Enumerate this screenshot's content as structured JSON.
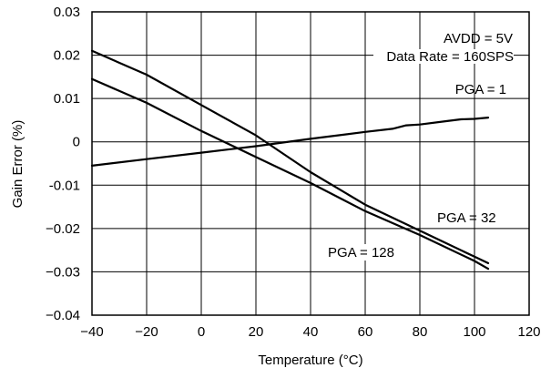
{
  "chart_data": {
    "type": "line",
    "title": "",
    "xlabel": "Temperature (°C)",
    "ylabel": "Gain Error (%)",
    "xlim": [
      -40,
      120
    ],
    "ylim": [
      -0.04,
      0.03
    ],
    "grid": true,
    "x_ticks": [
      "−40",
      "−20",
      "0",
      "20",
      "40",
      "60",
      "80",
      "100",
      "120"
    ],
    "y_ticks": [
      "0.03",
      "0.02",
      "0.01",
      "0",
      "-0.01",
      "−0.02",
      "−0.03",
      "−0.04"
    ],
    "series": [
      {
        "name": "PGA = 1",
        "x": [
          -40,
          -20,
          0,
          20,
          40,
          60,
          70,
          75,
          80,
          90,
          95,
          100,
          105
        ],
        "y": [
          -0.0055,
          -0.004,
          -0.0025,
          -0.001,
          0.0007,
          0.0023,
          0.003,
          0.0038,
          0.004,
          0.0048,
          0.0052,
          0.0053,
          0.0056
        ]
      },
      {
        "name": "PGA = 32",
        "x": [
          -40,
          -20,
          0,
          20,
          40,
          60,
          80,
          100,
          105
        ],
        "y": [
          0.021,
          0.0155,
          0.0085,
          0.0015,
          -0.007,
          -0.0145,
          -0.0205,
          -0.0265,
          -0.028
        ]
      },
      {
        "name": "PGA = 128",
        "x": [
          -40,
          -20,
          0,
          20,
          40,
          60,
          80,
          100,
          105
        ],
        "y": [
          0.0145,
          0.009,
          0.0025,
          -0.0035,
          -0.0095,
          -0.016,
          -0.0215,
          -0.0275,
          -0.0293
        ]
      }
    ],
    "annotations": {
      "avdd": "AVDD = 5V",
      "rate": "Data Rate = 160SPS",
      "pga1": "PGA = 1",
      "pga32": "PGA = 32",
      "pga128": "PGA = 128"
    }
  }
}
